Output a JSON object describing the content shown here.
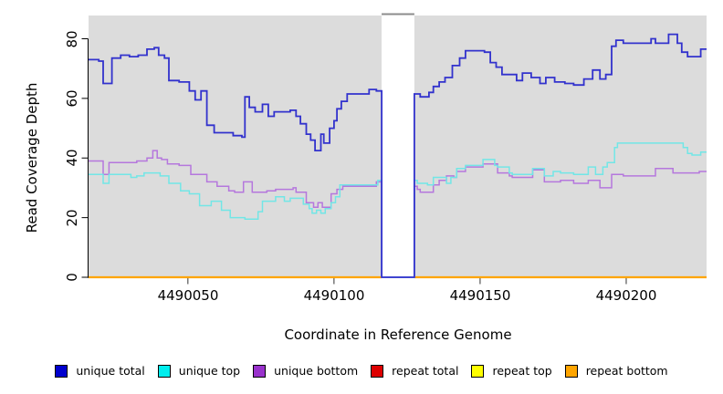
{
  "chart_data": {
    "type": "line",
    "subtype": "step",
    "title": "",
    "xlabel": "Coordinate in Reference Genome",
    "ylabel": "Read Coverage Depth",
    "xlim": [
      4490016,
      4490227.5
    ],
    "ylim": [
      0,
      87.8
    ],
    "x_ticks": [
      4490050,
      4490100,
      4490150,
      4490200
    ],
    "x_tick_labels": [
      "4490050",
      "4490100",
      "4490150",
      "4490200"
    ],
    "y_ticks": [
      0,
      20,
      40,
      60,
      80
    ],
    "y_tick_labels": [
      "0",
      "20",
      "40",
      "60",
      "80"
    ],
    "grid": false,
    "plot_bg": "#dcdcdc",
    "gap_region": {
      "x0": 4490116.3,
      "x1": 4490127.5,
      "fill": "#ffffff",
      "cap_color": "#8c8c8c"
    },
    "legend_position": "bottom",
    "series": [
      {
        "name": "repeat total",
        "line_color": "#dd0000",
        "legend_color": "#dd0000",
        "width": 1.4,
        "segments": [
          [
            [
              4490016,
              0
            ],
            [
              4490116.3,
              0
            ]
          ],
          [
            [
              4490127.5,
              0
            ],
            [
              4490227.5,
              0
            ]
          ]
        ]
      },
      {
        "name": "repeat top",
        "line_color": "#ffff00",
        "legend_color": "#ffff00",
        "width": 1.4,
        "segments": [
          [
            [
              4490016,
              0
            ],
            [
              4490116.3,
              0
            ]
          ],
          [
            [
              4490127.5,
              0
            ],
            [
              4490227.5,
              0
            ]
          ]
        ]
      },
      {
        "name": "repeat bottom",
        "line_color": "#ffa500",
        "legend_color": "#ffa500",
        "width": 2.2,
        "segments": [
          [
            [
              4490016,
              0
            ],
            [
              4490116.3,
              0
            ]
          ],
          [
            [
              4490127.5,
              0
            ],
            [
              4490227.5,
              0
            ]
          ]
        ]
      },
      {
        "name": "unique bottom",
        "line_color": "#b577dd",
        "legend_color": "#9932cc",
        "width": 1.5,
        "segments": [
          [
            [
              4490016,
              39
            ],
            [
              4490021,
              34.5
            ],
            [
              4490023,
              38.5
            ],
            [
              4490032.5,
              39
            ],
            [
              4490036,
              40
            ],
            [
              4490038,
              42.5
            ],
            [
              4490039.5,
              40
            ],
            [
              4490041,
              39.5
            ],
            [
              4490043,
              38
            ],
            [
              4490047,
              37.5
            ],
            [
              4490051,
              34.5
            ],
            [
              4490056.5,
              32
            ],
            [
              4490060,
              30.5
            ],
            [
              4490064,
              29
            ],
            [
              4490066,
              28.5
            ],
            [
              4490069,
              32
            ],
            [
              4490072,
              28.5
            ],
            [
              4490077,
              29
            ],
            [
              4490080,
              29.5
            ],
            [
              4490086,
              30
            ],
            [
              4490087,
              28.5
            ],
            [
              4490090.5,
              25
            ],
            [
              4490093,
              23.5
            ],
            [
              4490094.5,
              25
            ],
            [
              4490096,
              23.5
            ],
            [
              4490099,
              28
            ],
            [
              4490101,
              29.5
            ],
            [
              4490103,
              30.5
            ],
            [
              4490114.5,
              32
            ],
            [
              4490116.3,
              0
            ],
            [
              4490127.5,
              30.5
            ],
            [
              4490128.5,
              29.5
            ],
            [
              4490129.5,
              28.5
            ],
            [
              4490134,
              31
            ],
            [
              4490136,
              32.5
            ],
            [
              4490138.5,
              34
            ],
            [
              4490141,
              33.5
            ],
            [
              4490142,
              35.5
            ],
            [
              4490145,
              37
            ],
            [
              4490151,
              38
            ],
            [
              4490156,
              35
            ],
            [
              4490160,
              34
            ],
            [
              4490161,
              33.5
            ],
            [
              4490168,
              36
            ],
            [
              4490172,
              32
            ],
            [
              4490175,
              32
            ],
            [
              4490177.5,
              32.5
            ],
            [
              4490182,
              31.5
            ],
            [
              4490187,
              32.5
            ],
            [
              4490191,
              30
            ],
            [
              4490195,
              34.5
            ],
            [
              4490199,
              34
            ],
            [
              4490210,
              36.5
            ],
            [
              4490216,
              35
            ],
            [
              4490225,
              35.5
            ],
            [
              4490227.5,
              35.5
            ]
          ]
        ]
      },
      {
        "name": "unique top",
        "line_color": "#72e6e6",
        "legend_color": "#00eeee",
        "width": 1.5,
        "segments": [
          [
            [
              4490016,
              34.5
            ],
            [
              4490021,
              31.5
            ],
            [
              4490023,
              34.5
            ],
            [
              4490030.5,
              33.5
            ],
            [
              4490032.5,
              34
            ],
            [
              4490035,
              35
            ],
            [
              4490040.5,
              34
            ],
            [
              4490043.5,
              31.5
            ],
            [
              4490047.5,
              29
            ],
            [
              4490050.5,
              28
            ],
            [
              4490054,
              24
            ],
            [
              4490058,
              25.5
            ],
            [
              4490061.5,
              22.5
            ],
            [
              4490064.5,
              20
            ],
            [
              4490069.5,
              19.5
            ],
            [
              4490074,
              22
            ],
            [
              4490075.5,
              25.5
            ],
            [
              4490080,
              27
            ],
            [
              4490083,
              25.5
            ],
            [
              4490085,
              26.5
            ],
            [
              4490089.5,
              24.5
            ],
            [
              4490091.5,
              23
            ],
            [
              4490092.5,
              21.5
            ],
            [
              4490094,
              22.5
            ],
            [
              4490095.5,
              21.5
            ],
            [
              4490097,
              23
            ],
            [
              4490099,
              25
            ],
            [
              4490100.5,
              27
            ],
            [
              4490102,
              31
            ],
            [
              4490115,
              32.5
            ],
            [
              4490116.3,
              0
            ],
            [
              4490127.5,
              32.5
            ],
            [
              4490128.5,
              31.5
            ],
            [
              4490132,
              31
            ],
            [
              4490134,
              33.5
            ],
            [
              4490138.5,
              31.5
            ],
            [
              4490140,
              33.5
            ],
            [
              4490142,
              36.5
            ],
            [
              4490145,
              37.5
            ],
            [
              4490151,
              39.5
            ],
            [
              4490155,
              37.5
            ],
            [
              4490156,
              37
            ],
            [
              4490160,
              35
            ],
            [
              4490161,
              34.5
            ],
            [
              4490168,
              36.5
            ],
            [
              4490172,
              34
            ],
            [
              4490175,
              35.5
            ],
            [
              4490177.5,
              35
            ],
            [
              4490182,
              34.5
            ],
            [
              4490187,
              37
            ],
            [
              4490189.5,
              34.5
            ],
            [
              4490192,
              37
            ],
            [
              4490193.5,
              38.5
            ],
            [
              4490196,
              43.5
            ],
            [
              4490197,
              45
            ],
            [
              4490219.5,
              43.5
            ],
            [
              4490221,
              41.5
            ],
            [
              4490222.5,
              41
            ],
            [
              4490225.5,
              42
            ],
            [
              4490227.5,
              42
            ]
          ]
        ]
      },
      {
        "name": "unique total",
        "line_color": "#3232cd",
        "legend_color": "#0000cd",
        "width": 1.8,
        "segments": [
          [
            [
              4490016,
              73
            ],
            [
              4490019.5,
              72.5
            ],
            [
              4490021,
              65
            ],
            [
              4490024,
              73.5
            ],
            [
              4490027,
              74.5
            ],
            [
              4490030,
              74
            ],
            [
              4490033,
              74.5
            ],
            [
              4490036,
              76.5
            ],
            [
              4490038.5,
              77
            ],
            [
              4490040,
              74.5
            ],
            [
              4490042,
              73.5
            ],
            [
              4490043.5,
              66
            ],
            [
              4490047,
              65.5
            ],
            [
              4490050.5,
              62.5
            ],
            [
              4490052.5,
              59.5
            ],
            [
              4490054.5,
              62.5
            ],
            [
              4490056.5,
              51
            ],
            [
              4490059,
              48.5
            ],
            [
              4490065.5,
              47.5
            ],
            [
              4490068.5,
              47
            ],
            [
              4490069.5,
              60.5
            ],
            [
              4490071,
              57
            ],
            [
              4490073,
              55.5
            ],
            [
              4490075.5,
              58
            ],
            [
              4490077.5,
              54
            ],
            [
              4490079.5,
              55.5
            ],
            [
              4490085,
              56
            ],
            [
              4490087,
              54
            ],
            [
              4490088.5,
              51.5
            ],
            [
              4490090.5,
              48
            ],
            [
              4490092,
              46
            ],
            [
              4490093.5,
              42.5
            ],
            [
              4490095.5,
              48
            ],
            [
              4490096.5,
              45
            ],
            [
              4490098.5,
              50
            ],
            [
              4490100,
              52.5
            ],
            [
              4490101,
              56.5
            ],
            [
              4490102.5,
              59
            ],
            [
              4490104.5,
              61.5
            ],
            [
              4490112,
              63
            ],
            [
              4490114.5,
              62.5
            ],
            [
              4490116.3,
              0
            ],
            [
              4490127.5,
              61.5
            ],
            [
              4490129.5,
              60.5
            ],
            [
              4490132.5,
              62
            ],
            [
              4490134,
              64
            ],
            [
              4490136,
              65.5
            ],
            [
              4490138,
              67
            ],
            [
              4490140.5,
              71
            ],
            [
              4490143,
              73.5
            ],
            [
              4490145,
              76
            ],
            [
              4490151.5,
              75.5
            ],
            [
              4490153.5,
              72
            ],
            [
              4490155.5,
              70.5
            ],
            [
              4490157.5,
              68
            ],
            [
              4490162.5,
              66
            ],
            [
              4490164.5,
              68.5
            ],
            [
              4490167.5,
              67
            ],
            [
              4490170.5,
              65
            ],
            [
              4490172.5,
              67
            ],
            [
              4490175.5,
              65.5
            ],
            [
              4490179,
              65
            ],
            [
              4490182,
              64.5
            ],
            [
              4490185.5,
              66.5
            ],
            [
              4490188.5,
              69.5
            ],
            [
              4490191,
              66.5
            ],
            [
              4490193,
              68
            ],
            [
              4490195,
              77.5
            ],
            [
              4490196.5,
              79.5
            ],
            [
              4490199,
              78.5
            ],
            [
              4490208.5,
              80
            ],
            [
              4490210,
              78.5
            ],
            [
              4490214.5,
              81.5
            ],
            [
              4490217.5,
              78.5
            ],
            [
              4490219,
              75.5
            ],
            [
              4490221,
              74
            ],
            [
              4490225.5,
              76.5
            ],
            [
              4490227.5,
              76.5
            ]
          ]
        ]
      }
    ],
    "legend_order": [
      "unique total",
      "unique top",
      "unique bottom",
      "repeat total",
      "repeat top",
      "repeat bottom"
    ]
  }
}
